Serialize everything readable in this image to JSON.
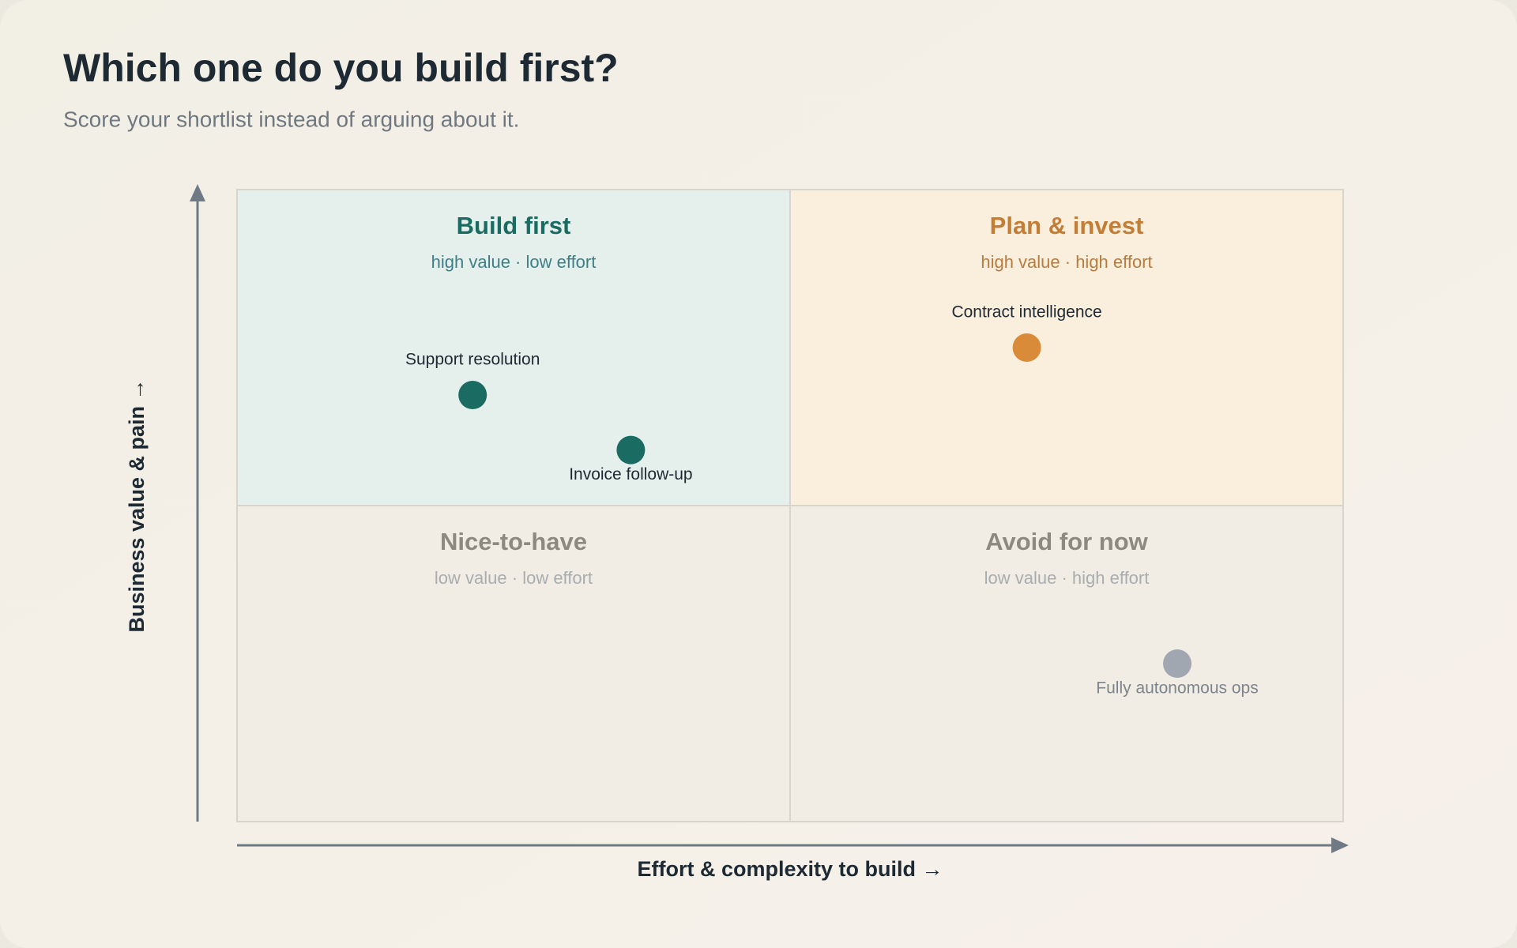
{
  "chart_data": {
    "type": "quadrant",
    "title": "Which one do you build first?",
    "subtitle": "Score your shortlist instead of arguing about it.",
    "x_label": "Effort & complexity to build →",
    "y_label": "Business value & pain →",
    "xlim": [
      0,
      10
    ],
    "ylim": [
      0,
      10
    ],
    "quadrants": [
      {
        "title": "Build first",
        "subtitle": "high value · low effort",
        "position": "top-left",
        "fill": "#e5efec",
        "title_color": "#1a6b62",
        "subtitle_color": "#3f7f86"
      },
      {
        "title": "Plan & invest",
        "subtitle": "high value · high effort",
        "position": "top-right",
        "fill": "#faeedd",
        "title_color": "#c47d35",
        "subtitle_color": "#b87c3e"
      },
      {
        "title": "Nice-to-have",
        "subtitle": "low value · low effort",
        "position": "bottom-left",
        "fill": "#f1ede5",
        "title_color": "#8c8a80",
        "subtitle_color": "#a8adb0"
      },
      {
        "title": "Avoid for now",
        "subtitle": "low value · high effort",
        "position": "bottom-right",
        "fill": "#f1ede5",
        "title_color": "#8c8a80",
        "subtitle_color": "#a8adb0"
      }
    ],
    "points": [
      {
        "name": "Support resolution",
        "x": 2.13,
        "y": 6.75,
        "color": "#1a6b62",
        "label_color": "#1e2a33",
        "label_position": "above"
      },
      {
        "name": "Invoice follow-up",
        "x": 3.56,
        "y": 5.88,
        "color": "#1a6b62",
        "label_color": "#1e2a33",
        "label_position": "below"
      },
      {
        "name": "Contract intelligence",
        "x": 7.14,
        "y": 7.5,
        "color": "#d98b3a",
        "label_color": "#1e2a33",
        "label_position": "above"
      },
      {
        "name": "Fully autonomous ops",
        "x": 8.5,
        "y": 2.5,
        "color": "#a0a7b1",
        "label_color": "#7d858c",
        "label_position": "below"
      }
    ]
  }
}
